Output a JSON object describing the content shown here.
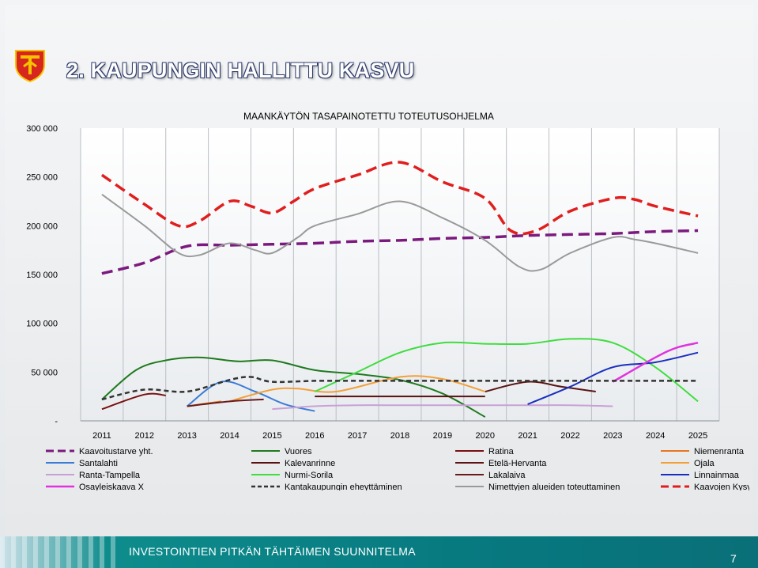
{
  "slide": {
    "title": "2. KAUPUNGIN HALLITTU KASVU",
    "footer": "INVESTOINTIEN PITKÄN TÄHTÄIMEN SUUNNITELMA",
    "page_number": "7"
  },
  "colors": {
    "title_outline": "#2d3a6b",
    "footer_teal": "#077a80",
    "logo_red": "#d7261e",
    "logo_yellow": "#f5c400"
  },
  "icons": {
    "logo": "city-crest-icon"
  },
  "chart_data": {
    "type": "line",
    "title": "MAANKÄYTÖN TASAPAINOTETTU TOTEUTUSOHJELMA",
    "xlabel": "",
    "ylabel": "",
    "categories": [
      "2011",
      "2012",
      "2013",
      "2014",
      "2015",
      "2016",
      "2017",
      "2018",
      "2019",
      "2020",
      "2021",
      "2022",
      "2023",
      "2024",
      "2025"
    ],
    "ylim": [
      0,
      300000
    ],
    "yticks": [
      0,
      50000,
      100000,
      150000,
      200000,
      250000,
      300000
    ],
    "ytick_labels": [
      "-",
      "50 000",
      "100 000",
      "150 000",
      "200 000",
      "250 000",
      "300 000"
    ],
    "grid": "vertical",
    "legend_position": "bottom",
    "series": [
      {
        "name": "Kaavoitustarve yht.",
        "color": "#7b1a7e",
        "dash": "long",
        "width": 3.5,
        "points": [
          [
            0,
            151000
          ],
          [
            1,
            162000
          ],
          [
            2,
            179000
          ],
          [
            3,
            180000
          ],
          [
            4,
            181000
          ],
          [
            5,
            182000
          ],
          [
            6,
            184000
          ],
          [
            7,
            185000
          ],
          [
            8,
            187000
          ],
          [
            9,
            188000
          ],
          [
            10,
            190000
          ],
          [
            11,
            191000
          ],
          [
            12,
            192000
          ],
          [
            13,
            194000
          ],
          [
            14,
            195000
          ]
        ]
      },
      {
        "name": "Vuores",
        "color": "#1f7a1f",
        "dash": "none",
        "width": 2,
        "points": [
          [
            0,
            22000
          ],
          [
            0.8,
            52000
          ],
          [
            1.5,
            62000
          ],
          [
            2.3,
            65000
          ],
          [
            3.2,
            61000
          ],
          [
            4,
            62000
          ],
          [
            5,
            52000
          ],
          [
            6,
            48000
          ],
          [
            7,
            42000
          ],
          [
            8,
            28000
          ],
          [
            9,
            4000
          ]
        ]
      },
      {
        "name": "Ratina",
        "color": "#7a1010",
        "dash": "none",
        "width": 2,
        "points": [
          [
            0,
            12000
          ],
          [
            1,
            27000
          ],
          [
            1.5,
            26000
          ]
        ]
      },
      {
        "name": "Niemenranta",
        "color": "#e87722",
        "dash": "none",
        "width": 2,
        "points": [
          [
            2,
            15000
          ],
          [
            2.8,
            20000
          ]
        ]
      },
      {
        "name": "Santalahti",
        "color": "#3a7cd6",
        "dash": "none",
        "width": 2,
        "points": [
          [
            2,
            15000
          ],
          [
            2.8,
            40000
          ],
          [
            3.6,
            30000
          ],
          [
            4.3,
            17000
          ],
          [
            5,
            10000
          ]
        ]
      },
      {
        "name": "Kalevanrinne",
        "color": "#5a1010",
        "dash": "none",
        "width": 2,
        "points": [
          [
            5,
            25000
          ],
          [
            9,
            25000
          ]
        ]
      },
      {
        "name": "Etelä-Hervanta",
        "color": "#5a1414",
        "dash": "none",
        "width": 2,
        "points": [
          [
            9,
            30000
          ],
          [
            10,
            40000
          ],
          [
            10.8,
            35000
          ],
          [
            11.6,
            30000
          ]
        ]
      },
      {
        "name": "Ojala",
        "color": "#f2a03a",
        "dash": "none",
        "width": 2,
        "points": [
          [
            3,
            20000
          ],
          [
            4,
            32000
          ],
          [
            4.6,
            33000
          ],
          [
            5.5,
            30000
          ],
          [
            7,
            45000
          ],
          [
            8,
            43000
          ],
          [
            9,
            30000
          ]
        ]
      },
      {
        "name": "Ranta-Tampella",
        "color": "#c9a0d6",
        "dash": "none",
        "width": 2,
        "points": [
          [
            4,
            12000
          ],
          [
            5,
            15000
          ],
          [
            6,
            16000
          ],
          [
            7,
            16000
          ],
          [
            8,
            16000
          ],
          [
            9,
            16000
          ],
          [
            10,
            16000
          ],
          [
            11,
            16000
          ],
          [
            12,
            15000
          ]
        ]
      },
      {
        "name": "Nurmi-Sorila",
        "color": "#3fdd3f",
        "dash": "none",
        "width": 2,
        "points": [
          [
            5,
            30000
          ],
          [
            6,
            50000
          ],
          [
            7,
            70000
          ],
          [
            8,
            80000
          ],
          [
            9,
            79000
          ],
          [
            10,
            79000
          ],
          [
            11,
            84000
          ],
          [
            12,
            80000
          ],
          [
            13,
            55000
          ],
          [
            14,
            20000
          ]
        ]
      },
      {
        "name": "Lakalaiva",
        "color": "#6b1a1a",
        "dash": "none",
        "width": 2,
        "points": [
          [
            2,
            15000
          ],
          [
            3,
            20000
          ],
          [
            3.8,
            22000
          ]
        ]
      },
      {
        "name": "Linnainmaa",
        "color": "#1a2fbf",
        "dash": "none",
        "width": 2,
        "points": [
          [
            10,
            17000
          ],
          [
            11,
            35000
          ],
          [
            12,
            55000
          ],
          [
            13,
            60000
          ],
          [
            14,
            70000
          ]
        ]
      },
      {
        "name": "Osayleiskaava X",
        "color": "#e032e0",
        "dash": "none",
        "width": 2.5,
        "points": [
          [
            12,
            40000
          ],
          [
            13,
            65000
          ],
          [
            13.5,
            75000
          ],
          [
            14,
            80000
          ]
        ]
      },
      {
        "name": "Kantakaupungin eheyttäminen",
        "color": "#333333",
        "dash": "short",
        "width": 2.5,
        "points": [
          [
            0,
            22000
          ],
          [
            1,
            32000
          ],
          [
            2,
            30000
          ],
          [
            3,
            42000
          ],
          [
            3.5,
            45000
          ],
          [
            4,
            40000
          ],
          [
            5,
            41000
          ],
          [
            6,
            41000
          ],
          [
            7,
            41000
          ],
          [
            8,
            41000
          ],
          [
            9,
            41000
          ],
          [
            10,
            41000
          ],
          [
            11,
            41000
          ],
          [
            12,
            41000
          ],
          [
            13,
            41000
          ],
          [
            14,
            41000
          ]
        ]
      },
      {
        "name": "Nimettyjen alueiden toteuttaminen",
        "color": "#9a9a9a",
        "dash": "none",
        "width": 2,
        "points": [
          [
            0,
            232000
          ],
          [
            1,
            200000
          ],
          [
            1.8,
            172000
          ],
          [
            2.3,
            170000
          ],
          [
            3,
            182000
          ],
          [
            3.6,
            175000
          ],
          [
            4,
            172000
          ],
          [
            4.6,
            188000
          ],
          [
            5,
            200000
          ],
          [
            6,
            212000
          ],
          [
            7,
            225000
          ],
          [
            8,
            208000
          ],
          [
            9,
            185000
          ],
          [
            9.8,
            158000
          ],
          [
            10.3,
            155000
          ],
          [
            11,
            172000
          ],
          [
            12,
            188000
          ],
          [
            12.5,
            186000
          ],
          [
            13,
            182000
          ],
          [
            14,
            172000
          ]
        ]
      },
      {
        "name": "Kaavojen Kysyntä",
        "color": "#e01e1e",
        "dash": "long",
        "width": 3.5,
        "points": [
          [
            0,
            252000
          ],
          [
            1,
            222000
          ],
          [
            1.8,
            200000
          ],
          [
            2.3,
            205000
          ],
          [
            3,
            225000
          ],
          [
            3.5,
            220000
          ],
          [
            4,
            213000
          ],
          [
            4.5,
            225000
          ],
          [
            5,
            238000
          ],
          [
            6,
            252000
          ],
          [
            7,
            265000
          ],
          [
            8,
            245000
          ],
          [
            9,
            228000
          ],
          [
            9.6,
            195000
          ],
          [
            10.2,
            195000
          ],
          [
            11,
            215000
          ],
          [
            12,
            228000
          ],
          [
            12.5,
            227000
          ],
          [
            13,
            220000
          ],
          [
            14,
            210000
          ]
        ]
      }
    ]
  }
}
